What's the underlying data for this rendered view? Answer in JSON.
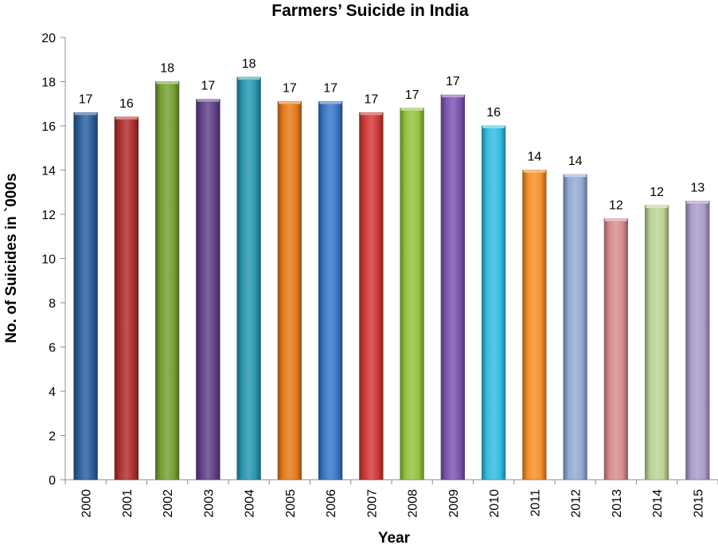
{
  "chart_data": {
    "type": "bar",
    "title": "Farmers’ Suicide in India",
    "xlabel": "Year",
    "ylabel": "No. of Suicides in `000s",
    "ylim": [
      0,
      20
    ],
    "yticks": [
      0,
      2,
      4,
      6,
      8,
      10,
      12,
      14,
      16,
      18,
      20
    ],
    "grid": false,
    "legend": "none",
    "categories": [
      "2000",
      "2001",
      "2002",
      "2003",
      "2004",
      "2005",
      "2006",
      "2007",
      "2008",
      "2009",
      "2010",
      "2011",
      "2012",
      "2013",
      "2014",
      "2015"
    ],
    "values": [
      16.6,
      16.4,
      18.0,
      17.2,
      18.2,
      17.1,
      17.1,
      16.6,
      16.8,
      17.4,
      16.0,
      14.0,
      13.8,
      11.8,
      12.4,
      12.6
    ],
    "data_labels": [
      "17",
      "16",
      "18",
      "17",
      "18",
      "17",
      "17",
      "17",
      "17",
      "17",
      "16",
      "14",
      "14",
      "12",
      "12",
      "13"
    ],
    "colors": [
      "#2e5f9e",
      "#b0302f",
      "#76a034",
      "#604289",
      "#2b97b0",
      "#e57a1e",
      "#3b77c8",
      "#cf3a38",
      "#92c341",
      "#7c56b0",
      "#34bde0",
      "#f59028",
      "#93abd4",
      "#d88d8e",
      "#bdd394",
      "#ab9dc8"
    ]
  }
}
